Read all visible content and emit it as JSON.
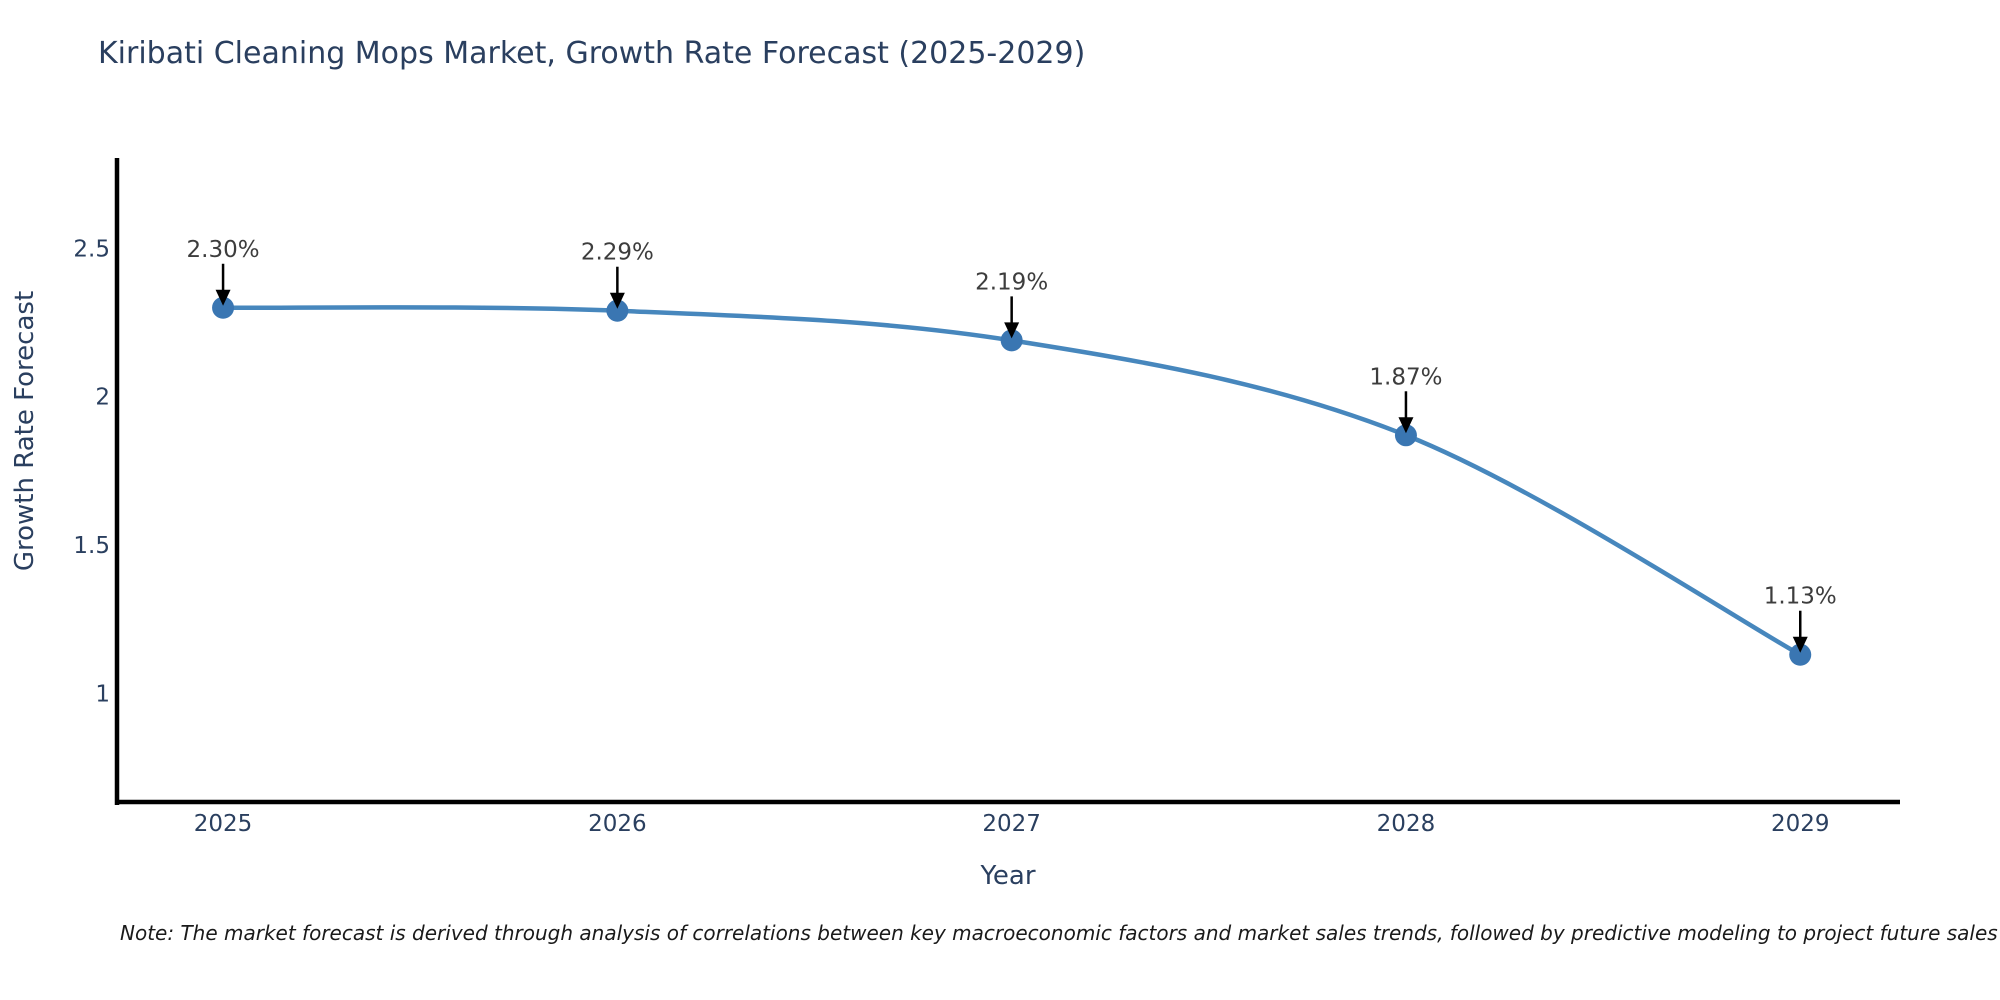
{
  "header": {
    "title": "Kiribati Cleaning Mops Market, Growth Rate Forecast (2025-2029)"
  },
  "chart_data": {
    "type": "line",
    "title": "Kiribati Cleaning Mops Market, Growth Rate Forecast (2025-2029)",
    "xlabel": "Year",
    "ylabel": "Growth Rate Forecast",
    "x": [
      2025,
      2026,
      2027,
      2028,
      2029
    ],
    "values": [
      2.3,
      2.29,
      2.19,
      1.87,
      1.13
    ],
    "point_labels": [
      "2.30%",
      "2.29%",
      "2.19%",
      "1.87%",
      "1.13%"
    ],
    "xticks": [
      2025,
      2026,
      2027,
      2028,
      2029
    ],
    "xtick_labels": [
      "2025",
      "2026",
      "2027",
      "2028",
      "2029"
    ],
    "yticks": [
      1,
      1.5,
      2,
      2.5
    ],
    "ytick_labels": [
      "1",
      "1.5",
      "2",
      "2.5"
    ],
    "xlim": [
      2024.731,
      2029.253
    ],
    "ylim": [
      0.63,
      2.805
    ],
    "line_shape": "spline",
    "grid": false,
    "legend": "none",
    "colors": {
      "line": "#4787bd",
      "marker": "#3a76b2",
      "axis_line": "#000000",
      "title_text": "#2a3f5f",
      "tick_text": "#2a3f5f",
      "annotation_text": "#3d3d3d",
      "arrow": "#000000",
      "background": "#ffffff"
    }
  },
  "footnote": {
    "text": "Note: The market forecast is derived through analysis of correlations between key macroeconomic factors and market sales trends, followed by predictive modeling to project future sales"
  }
}
